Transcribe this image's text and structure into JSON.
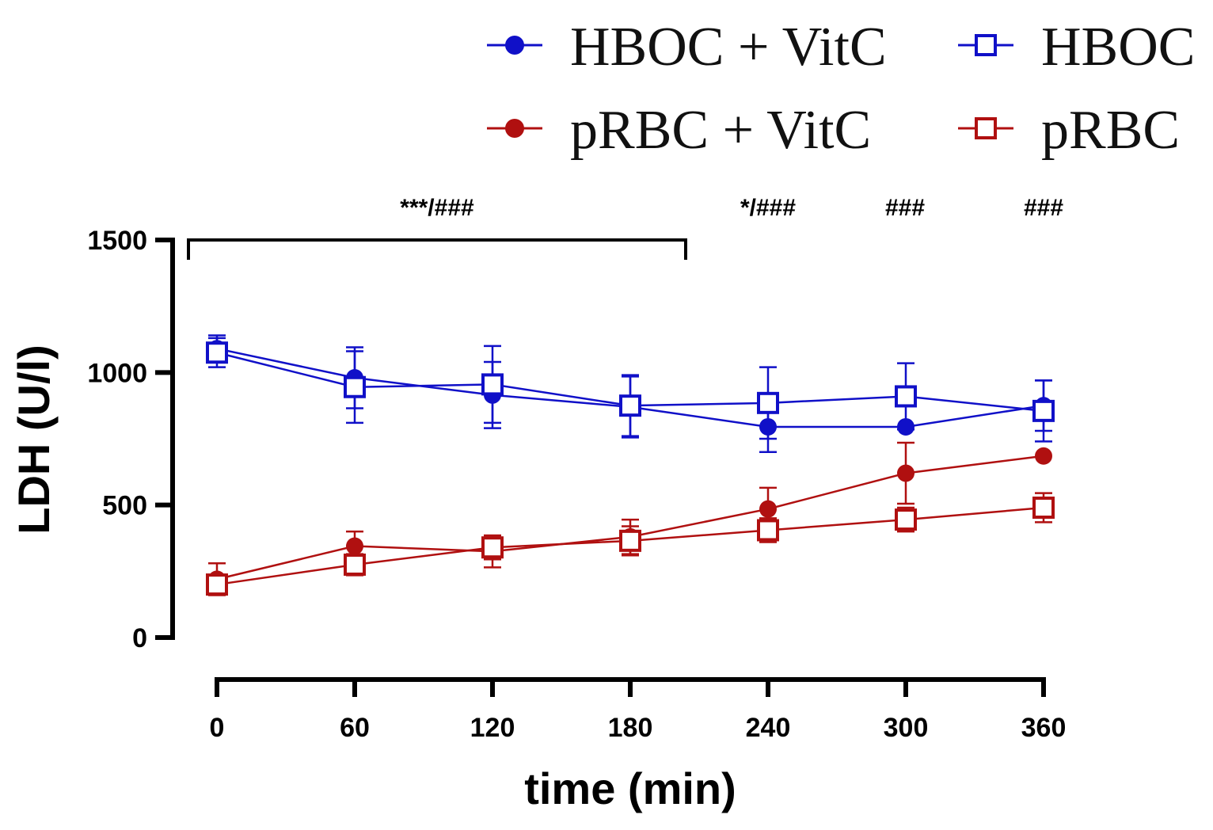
{
  "chart_data": {
    "type": "line",
    "title": "",
    "xlabel": "time (min)",
    "ylabel": "LDH (U/l)",
    "x": [
      0,
      60,
      120,
      180,
      240,
      300,
      360
    ],
    "xticks": [
      "0",
      "60",
      "120",
      "180",
      "240",
      "300",
      "360"
    ],
    "yticks": [
      "0",
      "500",
      "1000",
      "1500"
    ],
    "xlim": [
      0,
      360
    ],
    "ylim": [
      0,
      1500
    ],
    "legend_position": "top-right",
    "series": [
      {
        "name": "HBOC + VitC",
        "color": "#1010c8",
        "marker": "filled-circle",
        "values": [
          1090,
          980,
          915,
          870,
          795,
          795,
          875
        ],
        "errors": [
          50,
          115,
          125,
          115,
          95,
          0,
          95
        ]
      },
      {
        "name": "HBOC",
        "color": "#1010c8",
        "marker": "open-square",
        "values": [
          1075,
          945,
          955,
          875,
          885,
          910,
          855
        ],
        "errors": [
          55,
          135,
          145,
          115,
          135,
          125,
          115
        ]
      },
      {
        "name": "pRBC + VitC",
        "color": "#b01010",
        "marker": "filled-circle",
        "values": [
          220,
          345,
          325,
          380,
          485,
          620,
          685
        ],
        "errors": [
          60,
          55,
          60,
          65,
          80,
          115,
          0
        ]
      },
      {
        "name": "pRBC",
        "color": "#b01010",
        "marker": "open-square",
        "values": [
          200,
          275,
          340,
          365,
          405,
          445,
          490
        ],
        "errors": [
          30,
          40,
          45,
          55,
          45,
          45,
          55
        ]
      }
    ],
    "annotations": [
      {
        "text": "***/###",
        "x_range": [
          0,
          180
        ]
      },
      {
        "text": "*/###",
        "x": 240
      },
      {
        "text": "###",
        "x": 300
      },
      {
        "text": "###",
        "x": 360
      }
    ]
  }
}
